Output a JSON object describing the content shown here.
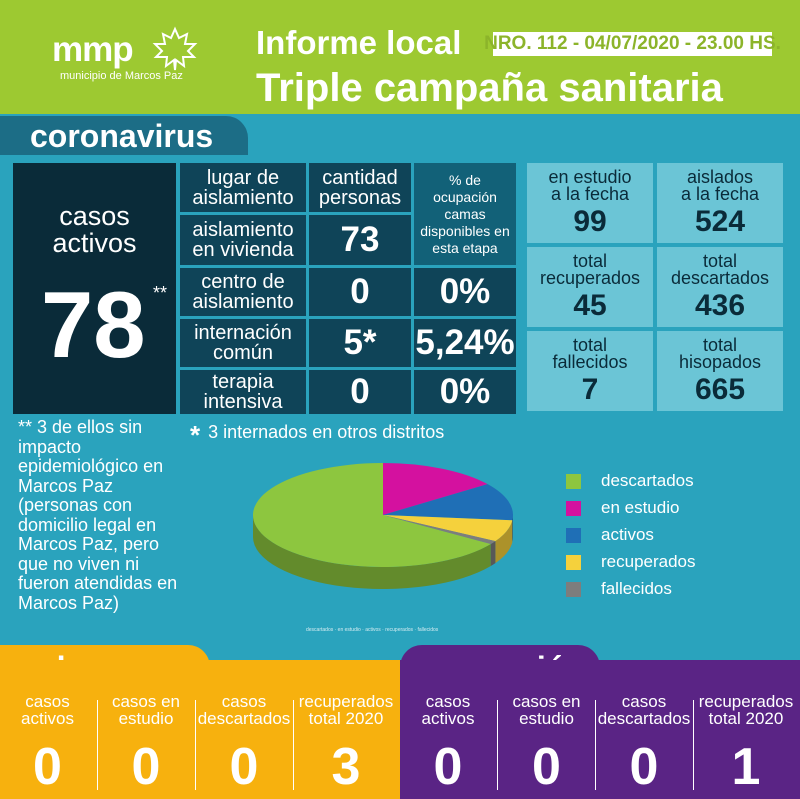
{
  "header": {
    "logo": "mmp",
    "logo_subtitle": "municipio de Marcos Paz",
    "title_line1": "Informe local",
    "issue": "NRO. 112 - 04/07/2020 - 23.00 HS.",
    "title_line2": "Triple campaña sanitaria"
  },
  "coronavirus": {
    "section_title": "coronavirus",
    "active": {
      "label_line1": "casos",
      "label_line2": "activos",
      "value": "78",
      "footnote_mark": "**"
    },
    "table": {
      "headers": [
        {
          "line1": "lugar de",
          "line2": "aislamiento"
        },
        {
          "line1": "cantidad",
          "line2": "personas"
        },
        {
          "line1": "% de",
          "line2": "ocupación",
          "line3": "camas",
          "line4": "disponibles en",
          "line5": "esta etapa"
        }
      ],
      "rows": [
        {
          "place_line1": "aislamiento",
          "place_line2": "en vivienda",
          "count": "73",
          "pct": ""
        },
        {
          "place_line1": "centro de",
          "place_line2": "aislamiento",
          "count": "0",
          "pct": "0%"
        },
        {
          "place_line1": "internación",
          "place_line2": "común",
          "count": "5*",
          "pct": "5,24%"
        },
        {
          "place_line1": "terapia",
          "place_line2": "intensiva",
          "count": "0",
          "pct": "0%"
        }
      ]
    },
    "stats": [
      {
        "line1": "en estudio",
        "line2": "a la fecha",
        "value": "99"
      },
      {
        "line1": "aislados",
        "line2": "a la fecha",
        "value": "524"
      },
      {
        "line1": "total",
        "line2": "recuperados",
        "value": "45"
      },
      {
        "line1": "total",
        "line2": "descartados",
        "value": "436"
      },
      {
        "line1": "total",
        "line2": "fallecidos",
        "value": "7"
      },
      {
        "line1": "total",
        "line2": "hisopados",
        "value": "665"
      }
    ],
    "note_stars": "** 3 de ellos sin impacto epidemiológico en Marcos Paz (personas con domicilio legal en Marcos Paz, pero que no viven ni fueron atendidas en Marcos Paz)",
    "note_hosp_mark": "*",
    "note_hosp": "3 internados en otros distritos",
    "pie": {
      "slices": [
        {
          "name": "descartados",
          "value": 436,
          "color": "#8dc63f"
        },
        {
          "name": "en estudio",
          "value": 99,
          "color": "#d4119f"
        },
        {
          "name": "activos",
          "value": 78,
          "color": "#1f6fb6"
        },
        {
          "name": "recuperados",
          "value": 45,
          "color": "#f5d13c"
        },
        {
          "name": "fallecidos",
          "value": 7,
          "color": "#7d7d7d"
        }
      ],
      "mini_legend": "descartados · en estudio · activos · recuperados · fallecidos"
    }
  },
  "dengue": {
    "title": "dengue",
    "cols": [
      {
        "line1": "casos",
        "line2": "activos",
        "value": "0"
      },
      {
        "line1": "casos en",
        "line2": "estudio",
        "value": "0"
      },
      {
        "line1": "casos",
        "line2": "descartados",
        "value": "0"
      },
      {
        "line1": "recuperados",
        "line2": "total 2020",
        "value": "3"
      }
    ]
  },
  "sarampion": {
    "title": "sarampión",
    "cols": [
      {
        "line1": "casos",
        "line2": "activos",
        "value": "0"
      },
      {
        "line1": "casos en",
        "line2": "estudio",
        "value": "0"
      },
      {
        "line1": "casos",
        "line2": "descartados",
        "value": "0"
      },
      {
        "line1": "recuperados",
        "line2": "total 2020",
        "value": "1"
      }
    ]
  }
}
